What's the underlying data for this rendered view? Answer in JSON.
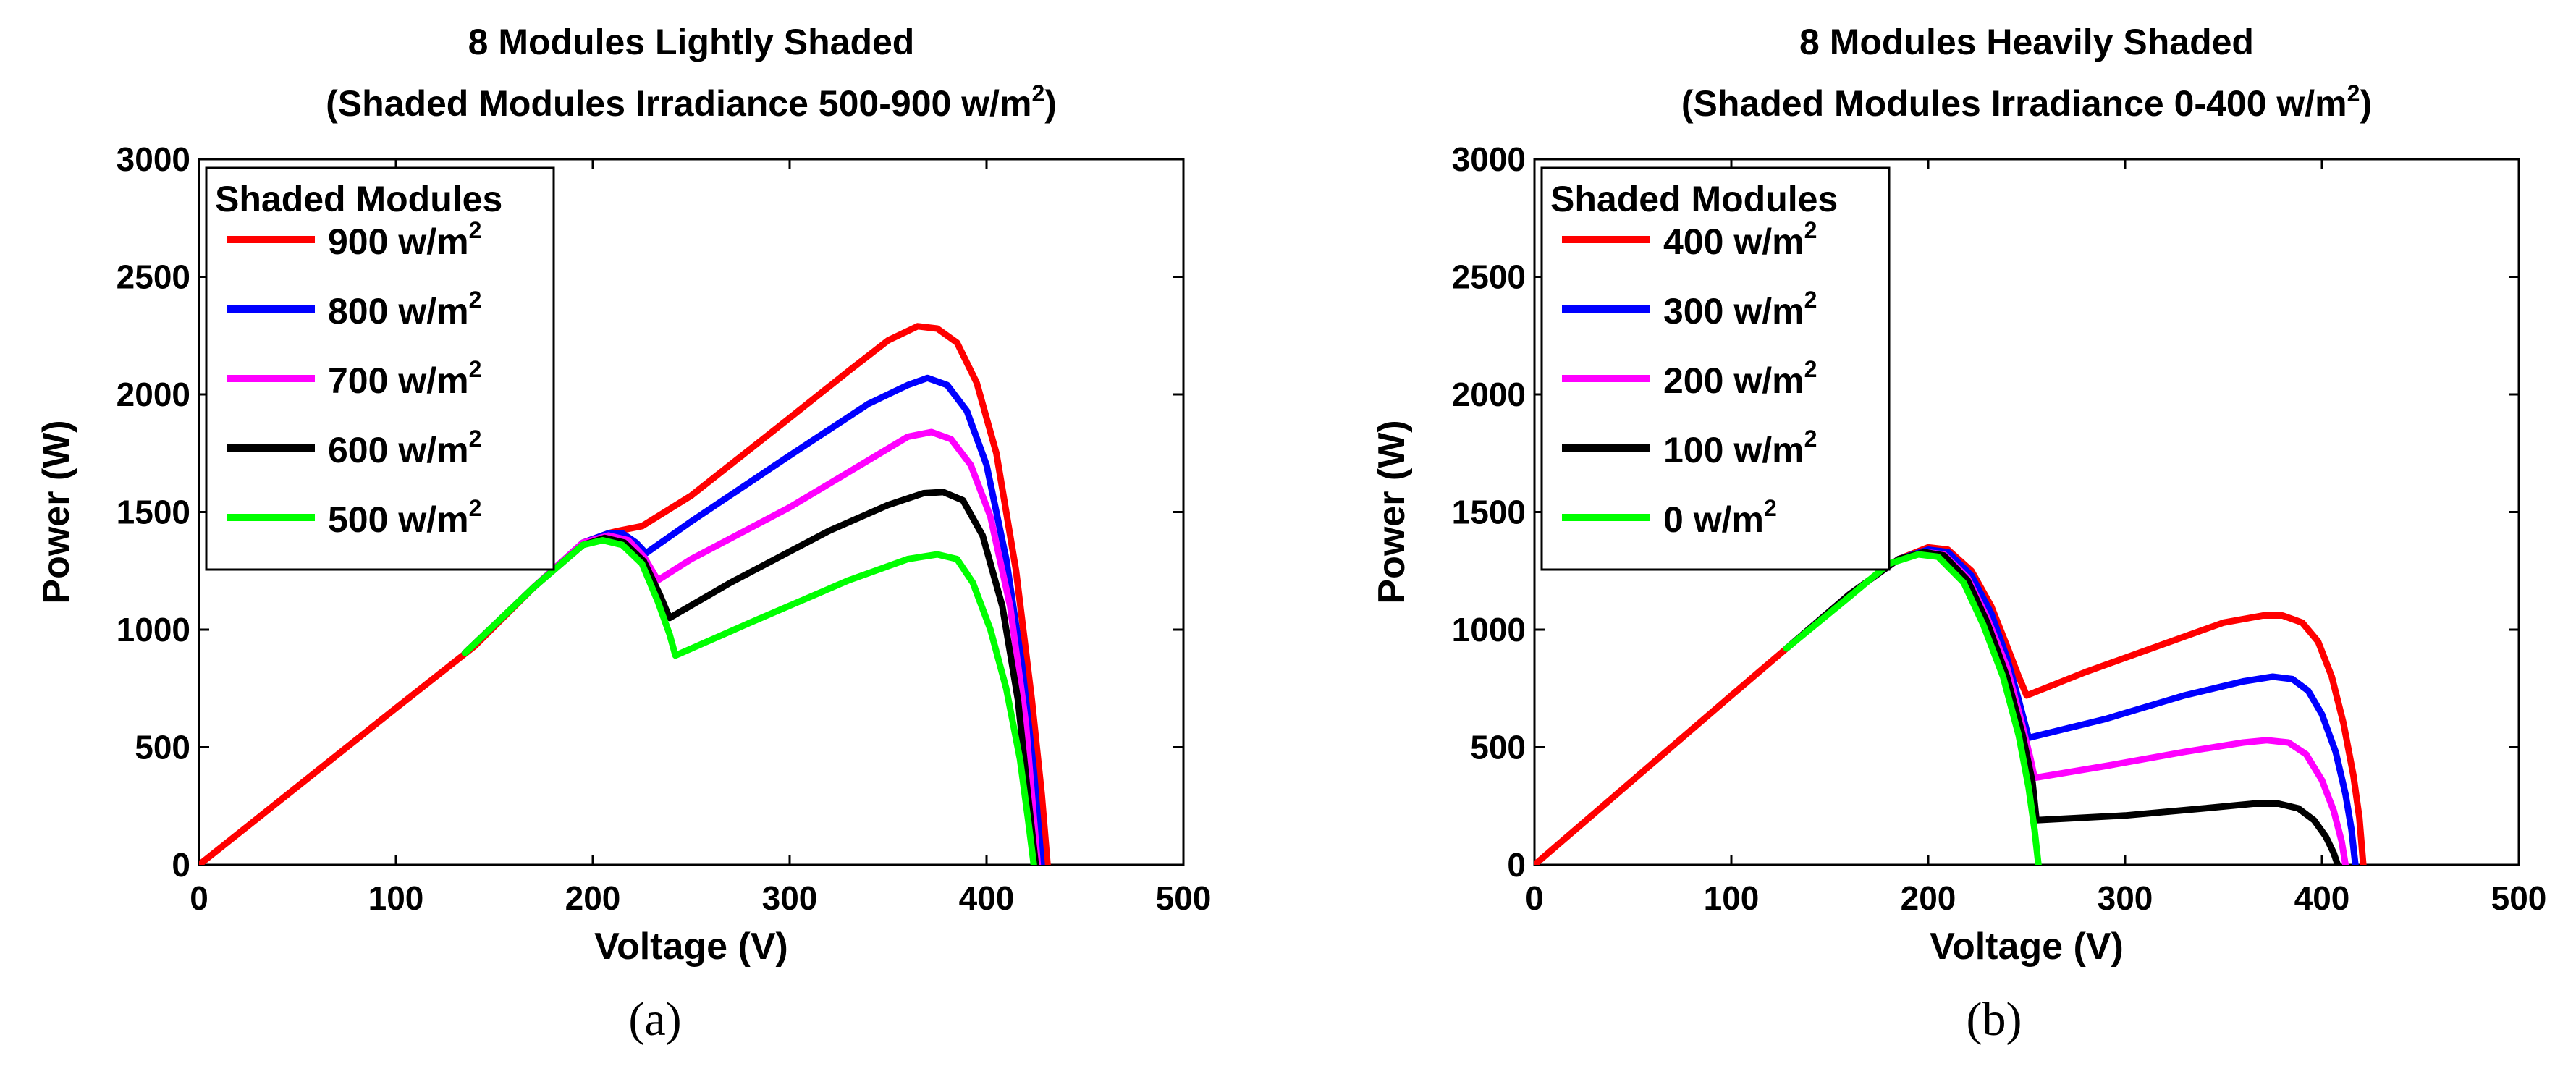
{
  "chart_data": [
    {
      "type": "line",
      "title_line1": "8 Modules Lightly Shaded",
      "title_line2": "(Shaded Modules Irradiance 500-900 w/m",
      "title_sup": "2",
      "title_close": ")",
      "xlabel": "Voltage (V)",
      "ylabel": "Power (W)",
      "xlim": [
        0,
        500
      ],
      "ylim": [
        0,
        3000
      ],
      "xticks": [
        "0",
        "100",
        "200",
        "300",
        "400",
        "500"
      ],
      "yticks": [
        "0",
        "500",
        "1000",
        "1500",
        "2000",
        "2500",
        "3000"
      ],
      "legend_title": "Shaded Modules",
      "legend_position": "top-left",
      "caption": "(a)",
      "series": [
        {
          "name": "900 w/m",
          "sup": "2",
          "color": "#ff0000",
          "points": [
            [
              0,
              0
            ],
            [
              50,
              333
            ],
            [
              100,
              666
            ],
            [
              140,
              930
            ],
            [
              170,
              1180
            ],
            [
              195,
              1370
            ],
            [
              208,
              1410
            ],
            [
              213,
              1420
            ],
            [
              225,
              1440
            ],
            [
              250,
              1570
            ],
            [
              300,
              1900
            ],
            [
              330,
              2100
            ],
            [
              350,
              2230
            ],
            [
              365,
              2290
            ],
            [
              375,
              2280
            ],
            [
              385,
              2220
            ],
            [
              395,
              2050
            ],
            [
              405,
              1750
            ],
            [
              415,
              1250
            ],
            [
              423,
              700
            ],
            [
              428,
              300
            ],
            [
              431,
              0
            ]
          ]
        },
        {
          "name": "800 w/m",
          "sup": "2",
          "color": "#0000ff",
          "points": [
            [
              135,
              900
            ],
            [
              170,
              1180
            ],
            [
              195,
              1370
            ],
            [
              208,
              1410
            ],
            [
              215,
              1410
            ],
            [
              222,
              1370
            ],
            [
              227,
              1325
            ],
            [
              250,
              1460
            ],
            [
              300,
              1740
            ],
            [
              340,
              1960
            ],
            [
              360,
              2040
            ],
            [
              370,
              2070
            ],
            [
              380,
              2040
            ],
            [
              390,
              1930
            ],
            [
              400,
              1700
            ],
            [
              410,
              1300
            ],
            [
              418,
              850
            ],
            [
              424,
              400
            ],
            [
              428,
              0
            ]
          ]
        },
        {
          "name": "700 w/m",
          "sup": "2",
          "color": "#ff00ff",
          "points": [
            [
              135,
              900
            ],
            [
              170,
              1180
            ],
            [
              195,
              1370
            ],
            [
              208,
              1400
            ],
            [
              218,
              1380
            ],
            [
              226,
              1310
            ],
            [
              233,
              1210
            ],
            [
              250,
              1300
            ],
            [
              300,
              1520
            ],
            [
              340,
              1720
            ],
            [
              360,
              1820
            ],
            [
              372,
              1840
            ],
            [
              382,
              1810
            ],
            [
              392,
              1700
            ],
            [
              402,
              1480
            ],
            [
              412,
              1100
            ],
            [
              420,
              600
            ],
            [
              426,
              0
            ]
          ]
        },
        {
          "name": "600 w/m",
          "sup": "2",
          "color": "#000000",
          "points": [
            [
              135,
              900
            ],
            [
              170,
              1180
            ],
            [
              195,
              1360
            ],
            [
              206,
              1390
            ],
            [
              216,
              1370
            ],
            [
              226,
              1290
            ],
            [
              234,
              1150
            ],
            [
              239,
              1050
            ],
            [
              270,
              1200
            ],
            [
              320,
              1420
            ],
            [
              350,
              1530
            ],
            [
              368,
              1580
            ],
            [
              378,
              1585
            ],
            [
              388,
              1550
            ],
            [
              398,
              1400
            ],
            [
              408,
              1100
            ],
            [
              416,
              700
            ],
            [
              421,
              300
            ],
            [
              425,
              0
            ]
          ]
        },
        {
          "name": "500 w/m",
          "sup": "2",
          "color": "#00ff00",
          "points": [
            [
              135,
              900
            ],
            [
              170,
              1180
            ],
            [
              195,
              1360
            ],
            [
              205,
              1380
            ],
            [
              215,
              1360
            ],
            [
              225,
              1280
            ],
            [
              233,
              1120
            ],
            [
              239,
              980
            ],
            [
              242,
              890
            ],
            [
              280,
              1030
            ],
            [
              330,
              1210
            ],
            [
              360,
              1300
            ],
            [
              375,
              1320
            ],
            [
              385,
              1300
            ],
            [
              393,
              1200
            ],
            [
              402,
              1000
            ],
            [
              410,
              750
            ],
            [
              417,
              450
            ],
            [
              421,
              200
            ],
            [
              424,
              0
            ]
          ]
        }
      ]
    },
    {
      "type": "line",
      "title_line1": "8 Modules Heavily Shaded",
      "title_line2": "(Shaded Modules Irradiance 0-400 w/m",
      "title_sup": "2",
      "title_close": ")",
      "xlabel": "Voltage (V)",
      "ylabel": "Power (W)",
      "xlim": [
        0,
        500
      ],
      "ylim": [
        0,
        3000
      ],
      "xticks": [
        "0",
        "100",
        "200",
        "300",
        "400",
        "500"
      ],
      "yticks": [
        "0",
        "500",
        "1000",
        "1500",
        "2000",
        "2500",
        "3000"
      ],
      "legend_title": "Shaded Modules",
      "legend_position": "top-left",
      "caption": "(b)",
      "series": [
        {
          "name": "400 w/m",
          "sup": "2",
          "color": "#ff0000",
          "points": [
            [
              0,
              0
            ],
            [
              50,
              360
            ],
            [
              100,
              720
            ],
            [
              128,
              920
            ],
            [
              160,
              1150
            ],
            [
              185,
              1300
            ],
            [
              200,
              1350
            ],
            [
              210,
              1340
            ],
            [
              222,
              1250
            ],
            [
              232,
              1100
            ],
            [
              240,
              930
            ],
            [
              246,
              800
            ],
            [
              250,
              720
            ],
            [
              280,
              820
            ],
            [
              320,
              940
            ],
            [
              350,
              1030
            ],
            [
              370,
              1060
            ],
            [
              380,
              1060
            ],
            [
              390,
              1030
            ],
            [
              398,
              950
            ],
            [
              405,
              800
            ],
            [
              411,
              600
            ],
            [
              416,
              380
            ],
            [
              419,
              200
            ],
            [
              421,
              0
            ]
          ]
        },
        {
          "name": "300 w/m",
          "sup": "2",
          "color": "#0000ff",
          "points": [
            [
              128,
              920
            ],
            [
              160,
              1150
            ],
            [
              185,
              1300
            ],
            [
              200,
              1340
            ],
            [
              210,
              1330
            ],
            [
              222,
              1230
            ],
            [
              232,
              1070
            ],
            [
              240,
              880
            ],
            [
              246,
              700
            ],
            [
              251,
              540
            ],
            [
              290,
              620
            ],
            [
              330,
              720
            ],
            [
              360,
              780
            ],
            [
              375,
              800
            ],
            [
              385,
              790
            ],
            [
              393,
              740
            ],
            [
              400,
              640
            ],
            [
              407,
              480
            ],
            [
              412,
              300
            ],
            [
              415,
              150
            ],
            [
              417,
              0
            ]
          ]
        },
        {
          "name": "200 w/m",
          "sup": "2",
          "color": "#ff00ff",
          "points": [
            [
              128,
              920
            ],
            [
              160,
              1150
            ],
            [
              185,
              1300
            ],
            [
              198,
              1330
            ],
            [
              208,
              1320
            ],
            [
              220,
              1220
            ],
            [
              230,
              1050
            ],
            [
              240,
              840
            ],
            [
              247,
              620
            ],
            [
              252,
              450
            ],
            [
              254,
              370
            ],
            [
              290,
              420
            ],
            [
              330,
              480
            ],
            [
              360,
              520
            ],
            [
              372,
              530
            ],
            [
              383,
              520
            ],
            [
              392,
              470
            ],
            [
              400,
              360
            ],
            [
              406,
              230
            ],
            [
              410,
              100
            ],
            [
              412,
              0
            ]
          ]
        },
        {
          "name": "100 w/m",
          "sup": "2",
          "color": "#000000",
          "points": [
            [
              128,
              920
            ],
            [
              160,
              1150
            ],
            [
              185,
              1300
            ],
            [
              198,
              1330
            ],
            [
              208,
              1315
            ],
            [
              220,
              1210
            ],
            [
              230,
              1030
            ],
            [
              240,
              800
            ],
            [
              248,
              550
            ],
            [
              253,
              350
            ],
            [
              255,
              190
            ],
            [
              300,
              210
            ],
            [
              340,
              240
            ],
            [
              365,
              260
            ],
            [
              378,
              260
            ],
            [
              388,
              240
            ],
            [
              396,
              190
            ],
            [
              402,
              120
            ],
            [
              406,
              50
            ],
            [
              408,
              0
            ]
          ]
        },
        {
          "name": "0 w/m",
          "sup": "2",
          "color": "#00ff00",
          "points": [
            [
              128,
              920
            ],
            [
              160,
              1140
            ],
            [
              180,
              1280
            ],
            [
              195,
              1320
            ],
            [
              205,
              1310
            ],
            [
              218,
              1200
            ],
            [
              228,
              1020
            ],
            [
              238,
              800
            ],
            [
              246,
              550
            ],
            [
              251,
              330
            ],
            [
              254,
              150
            ],
            [
              256,
              0
            ]
          ]
        }
      ]
    }
  ]
}
